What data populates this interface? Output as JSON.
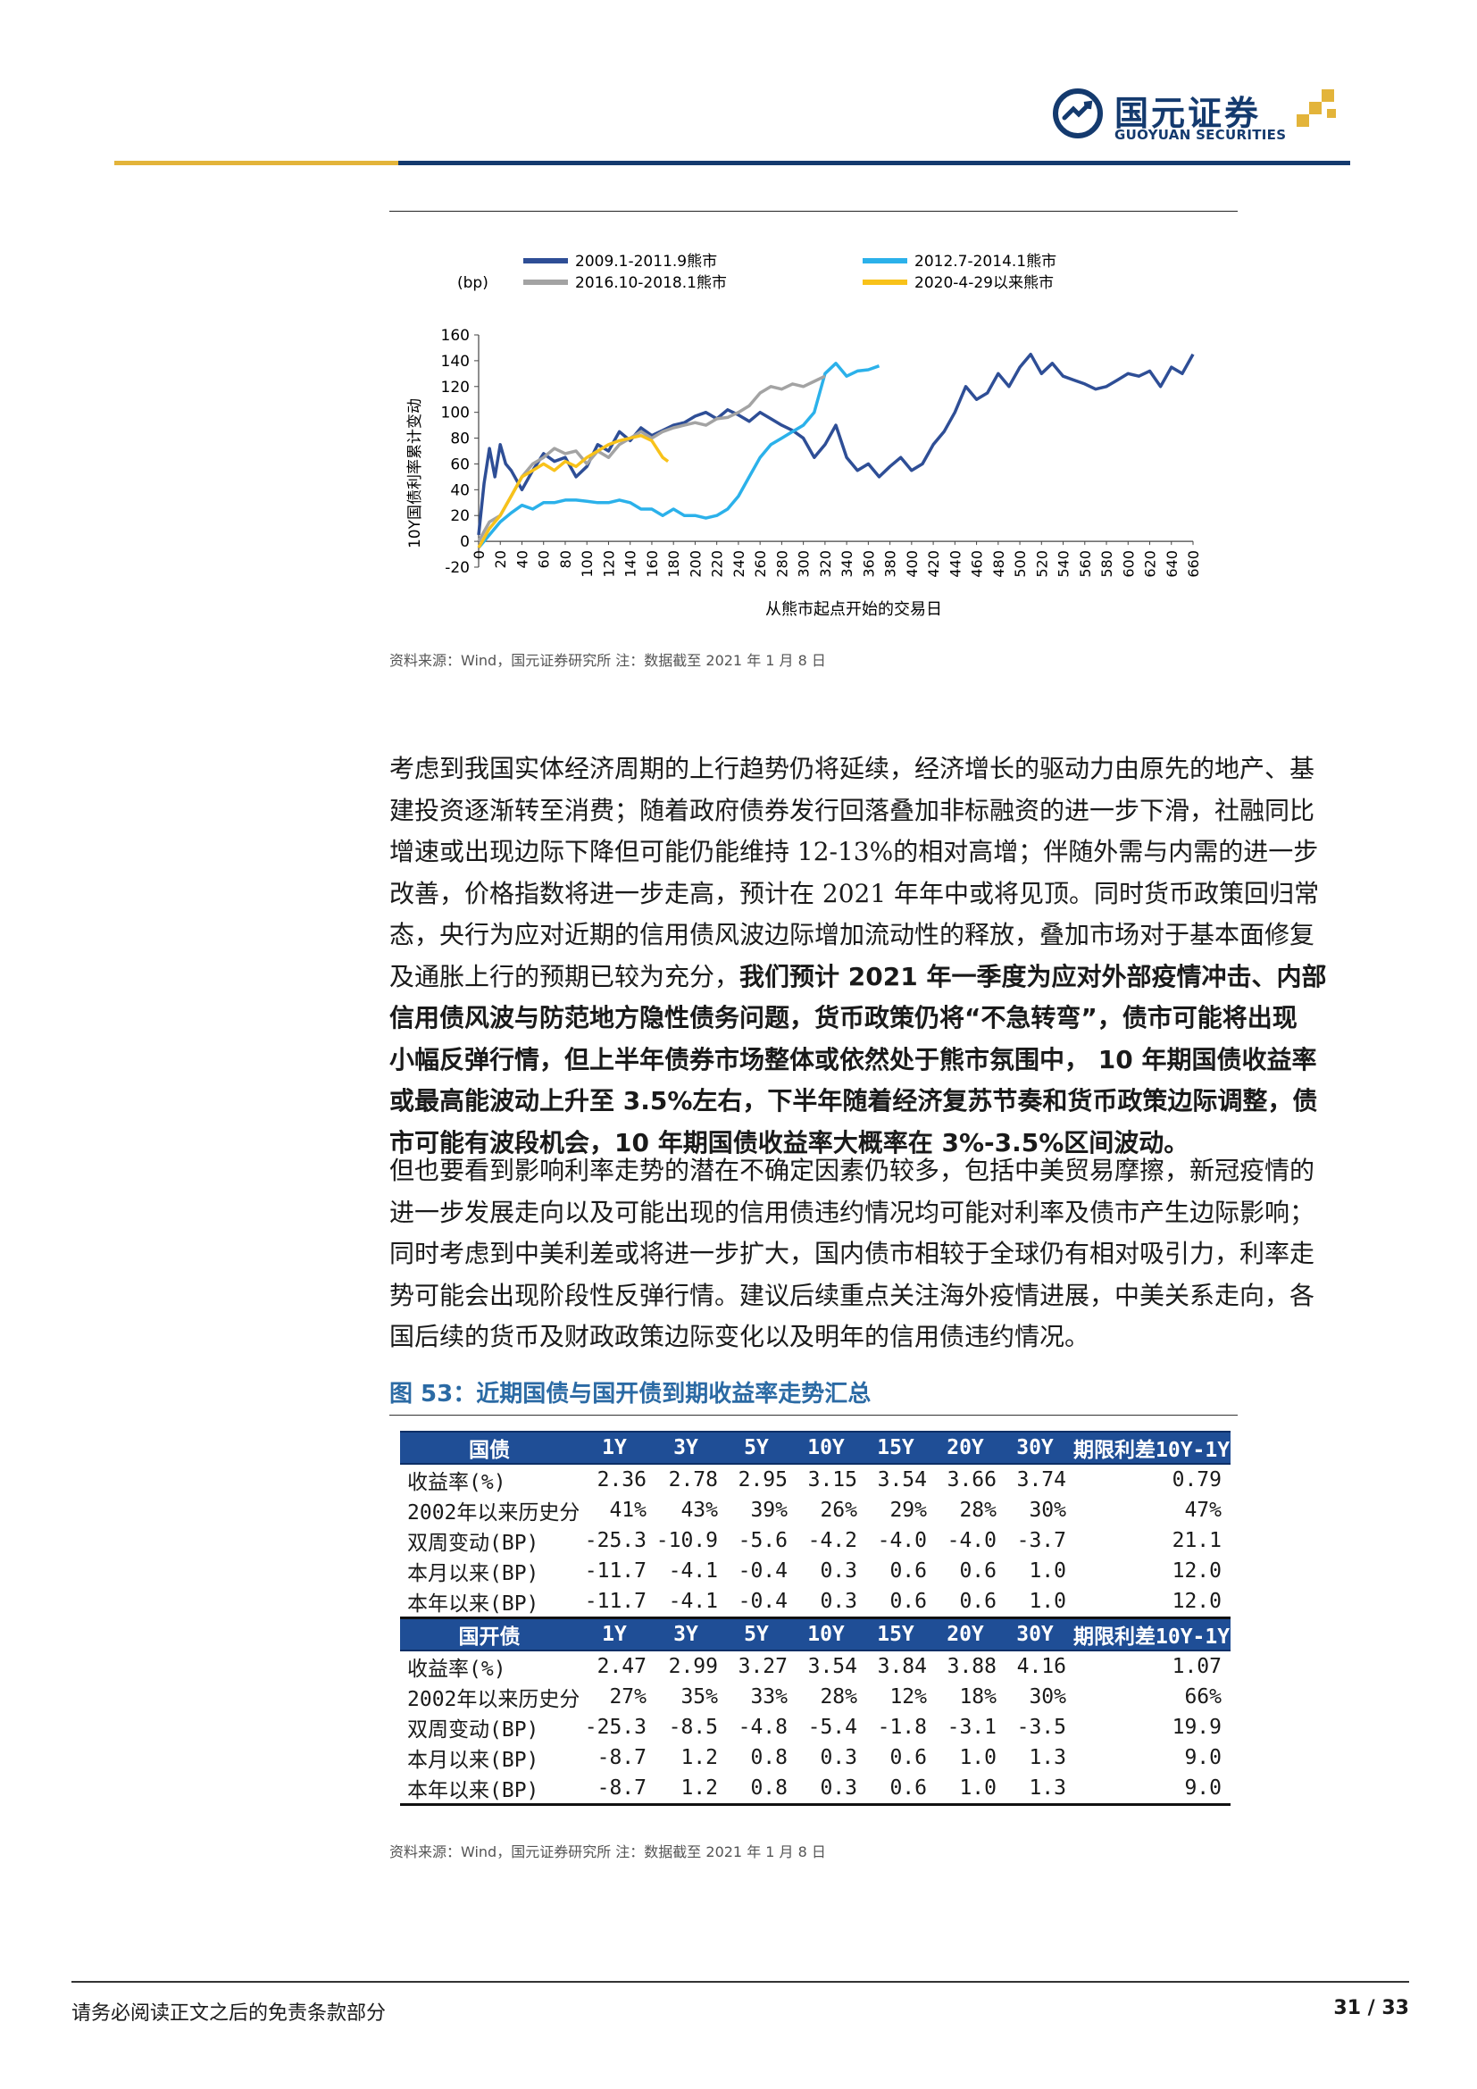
{
  "header": {
    "logo_cn": "国元证券",
    "logo_en": "GUOYUAN SECURITIES",
    "colors": {
      "navy": "#143a6e",
      "gold": "#e3b43a"
    }
  },
  "chart": {
    "source": "资料来源：Wind，国元证券研究所 注：数据截至 2021 年 1 月 8 日",
    "chart_data": {
      "type": "line",
      "xlabel": "从熊市起点开始的交易日",
      "ylabel": "10Y国债利率累计变动",
      "yunit": "(bp)",
      "xlim": [
        0,
        660
      ],
      "ylim": [
        -20,
        160
      ],
      "xticks": [
        0,
        20,
        40,
        60,
        80,
        100,
        120,
        140,
        160,
        180,
        200,
        220,
        240,
        260,
        280,
        300,
        320,
        340,
        360,
        380,
        400,
        420,
        440,
        460,
        480,
        500,
        520,
        540,
        560,
        580,
        600,
        620,
        640,
        660
      ],
      "yticks": [
        -20,
        0,
        20,
        40,
        60,
        80,
        100,
        120,
        140,
        160
      ],
      "legend_position": "top",
      "series": [
        {
          "name": "2009.1-2011.9熊市",
          "color": "#2e4e96",
          "x": [
            0,
            5,
            10,
            15,
            20,
            25,
            30,
            40,
            50,
            60,
            70,
            80,
            90,
            100,
            110,
            120,
            130,
            140,
            150,
            160,
            170,
            180,
            190,
            200,
            210,
            220,
            230,
            240,
            250,
            260,
            270,
            280,
            290,
            300,
            310,
            320,
            330,
            340,
            350,
            360,
            370,
            380,
            390,
            400,
            410,
            420,
            430,
            440,
            450,
            460,
            470,
            480,
            490,
            500,
            510,
            520,
            530,
            540,
            550,
            560,
            570,
            580,
            590,
            600,
            610,
            620,
            630,
            640,
            650,
            660
          ],
          "values": [
            5,
            45,
            72,
            50,
            75,
            60,
            55,
            40,
            55,
            68,
            62,
            65,
            50,
            58,
            75,
            70,
            85,
            78,
            88,
            82,
            86,
            90,
            92,
            97,
            100,
            95,
            102,
            98,
            93,
            100,
            95,
            90,
            86,
            80,
            65,
            75,
            90,
            65,
            55,
            60,
            50,
            58,
            65,
            55,
            60,
            75,
            85,
            100,
            120,
            110,
            115,
            130,
            120,
            135,
            145,
            130,
            138,
            128,
            125,
            122,
            118,
            120,
            125,
            130,
            128,
            132,
            120,
            135,
            130,
            145
          ]
        },
        {
          "name": "2012.7-2014.1熊市",
          "color": "#2bb1ea",
          "x": [
            0,
            10,
            20,
            30,
            40,
            50,
            60,
            70,
            80,
            90,
            100,
            110,
            120,
            130,
            140,
            150,
            160,
            170,
            180,
            190,
            200,
            210,
            220,
            230,
            240,
            250,
            260,
            270,
            280,
            290,
            300,
            310,
            320,
            330,
            340,
            350,
            360,
            370
          ],
          "values": [
            -5,
            5,
            15,
            22,
            28,
            25,
            30,
            30,
            32,
            32,
            31,
            30,
            30,
            32,
            30,
            25,
            25,
            20,
            25,
            20,
            20,
            18,
            20,
            25,
            35,
            50,
            65,
            75,
            80,
            85,
            90,
            100,
            130,
            138,
            128,
            132,
            133,
            136
          ]
        },
        {
          "name": "2016.10-2018.1熊市",
          "color": "#a3a3a3",
          "x": [
            0,
            10,
            20,
            30,
            40,
            50,
            60,
            70,
            80,
            90,
            100,
            110,
            120,
            130,
            140,
            150,
            160,
            170,
            180,
            190,
            200,
            210,
            220,
            230,
            240,
            250,
            260,
            270,
            280,
            290,
            300,
            310,
            320
          ],
          "values": [
            0,
            15,
            20,
            35,
            50,
            60,
            65,
            72,
            68,
            70,
            60,
            70,
            65,
            75,
            80,
            85,
            80,
            85,
            88,
            90,
            92,
            90,
            95,
            96,
            100,
            105,
            115,
            120,
            118,
            122,
            120,
            124,
            128
          ]
        },
        {
          "name": "2020-4-29以来熊市",
          "color": "#f8c21a",
          "x": [
            0,
            10,
            20,
            30,
            40,
            50,
            60,
            70,
            80,
            90,
            100,
            110,
            120,
            130,
            140,
            150,
            160,
            170,
            175
          ],
          "values": [
            -5,
            10,
            20,
            35,
            50,
            55,
            60,
            55,
            62,
            58,
            65,
            70,
            75,
            78,
            80,
            82,
            78,
            65,
            62
          ]
        }
      ]
    }
  },
  "para1": {
    "lines": [
      "考虑到我国实体经济周期的上行趋势仍将延续，经济增长的驱动力由原先的地产、基",
      "建投资逐渐转至消费；随着政府债券发行回落叠加非标融资的进一步下滑，社融同比",
      "增速或出现边际下降但可能仍能维持 12-13%的相对高增；伴随外需与内需的进一步",
      "改善，价格指数将进一步走高，预计在 2021 年年中或将见顶。同时货币政策回归常",
      "态，央行为应对近期的信用债风波边际增加流动性的释放，叠加市场对于基本面修复"
    ],
    "l6_normal": "及通胀上行的预期已较为充分，",
    "l6_bold": "我们预计 2021 年一季度为应对外部疫情冲击、内部",
    "bold_lines": [
      "信用债风波与防范地方隐性债务问题，货币政策仍将“不急转弯”，债市可能将出现",
      "小幅反弹行情，但上半年债券市场整体或依然处于熊市氛围中， 10 年期国债收益率",
      "或最高能波动上升至 3.5%左右，下半年随着经济复苏节奏和货币政策边际调整，债",
      "市可能有波段机会，10 年期国债收益率大概率在 3%-3.5%区间波动。"
    ]
  },
  "para2": {
    "lines": [
      "但也要看到影响利率走势的潜在不确定因素仍较多，包括中美贸易摩擦，新冠疫情的",
      "进一步发展走向以及可能出现的信用债违约情况均可能对利率及债市产生边际影响；",
      "同时考虑到中美利差或将进一步扩大，国内债市相较于全球仍有相对吸引力，利率走",
      "势可能会出现阶段性反弹行情。建议后续重点关注海外疫情进展，中美关系走向，各",
      "国后续的货币及财政政策边际变化以及明年的信用债违约情况。"
    ]
  },
  "figure53": {
    "title": "图 53：近期国债与国开债到期收益率走势汇总",
    "gov": {
      "header": [
        "国债",
        "1Y",
        "3Y",
        "5Y",
        "10Y",
        "15Y",
        "20Y",
        "30Y",
        "期限利差10Y-1Y"
      ],
      "rows": [
        [
          "收益率(%)",
          "2.36",
          "2.78",
          "2.95",
          "3.15",
          "3.54",
          "3.66",
          "3.74",
          "0.79"
        ],
        [
          "2002年以来历史分位",
          "41%",
          "43%",
          "39%",
          "26%",
          "29%",
          "28%",
          "30%",
          "47%"
        ],
        [
          "双周变动(BP)",
          "-25.3",
          "-10.9",
          "-5.6",
          "-4.2",
          "-4.0",
          "-4.0",
          "-3.7",
          "21.1"
        ],
        [
          "本月以来(BP)",
          "-11.7",
          "-4.1",
          "-0.4",
          "0.3",
          "0.6",
          "0.6",
          "1.0",
          "12.0"
        ],
        [
          "本年以来(BP)",
          "-11.7",
          "-4.1",
          "-0.4",
          "0.3",
          "0.6",
          "0.6",
          "1.0",
          "12.0"
        ]
      ]
    },
    "cdb": {
      "header": [
        "国开债",
        "1Y",
        "3Y",
        "5Y",
        "10Y",
        "15Y",
        "20Y",
        "30Y",
        "期限利差10Y-1Y"
      ],
      "rows": [
        [
          "收益率(%)",
          "2.47",
          "2.99",
          "3.27",
          "3.54",
          "3.84",
          "3.88",
          "4.16",
          "1.07"
        ],
        [
          "2002年以来历史分位",
          "27%",
          "35%",
          "33%",
          "28%",
          "12%",
          "18%",
          "30%",
          "66%"
        ],
        [
          "双周变动(BP)",
          "-25.3",
          "-8.5",
          "-4.8",
          "-5.4",
          "-1.8",
          "-3.1",
          "-3.5",
          "19.9"
        ],
        [
          "本月以来(BP)",
          "-8.7",
          "1.2",
          "0.8",
          "0.3",
          "0.6",
          "1.0",
          "1.3",
          "9.0"
        ],
        [
          "本年以来(BP)",
          "-8.7",
          "1.2",
          "0.8",
          "0.3",
          "0.6",
          "1.0",
          "1.3",
          "9.0"
        ]
      ]
    },
    "source": "资料来源：Wind，国元证券研究所 注：数据截至 2021 年 1 月 8 日",
    "header_color": "#1f4e96"
  },
  "footer": {
    "disclaimer": "请务必阅读正文之后的免责条款部分",
    "page": "31 / 33"
  }
}
